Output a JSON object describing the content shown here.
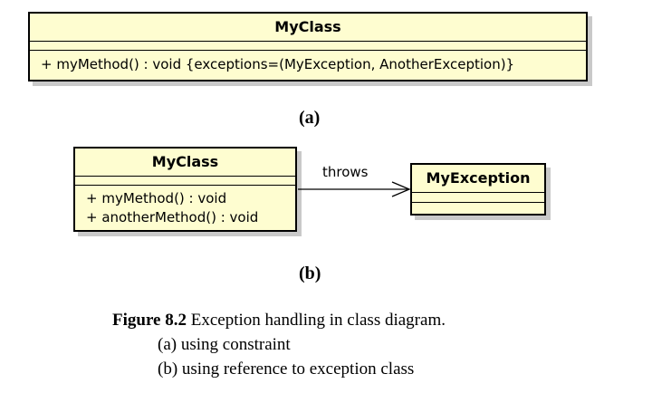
{
  "diagram_a": {
    "class_name": "MyClass",
    "operations": [
      "+ myMethod() : void {exceptions=(MyException, AnotherException)}"
    ],
    "sublabel": "(a)"
  },
  "diagram_b": {
    "class_name": "MyClass",
    "operations": [
      "+ myMethod() : void",
      "+ anotherMethod() : void"
    ],
    "dependency_label": "throws",
    "target_class_name": "MyException",
    "sublabel": "(b)"
  },
  "caption": {
    "figure_number": "Figure 8.2",
    "title": " Exception handling in class diagram.",
    "line_a": "(a) using constraint",
    "line_b": "(b) using reference to exception class"
  }
}
